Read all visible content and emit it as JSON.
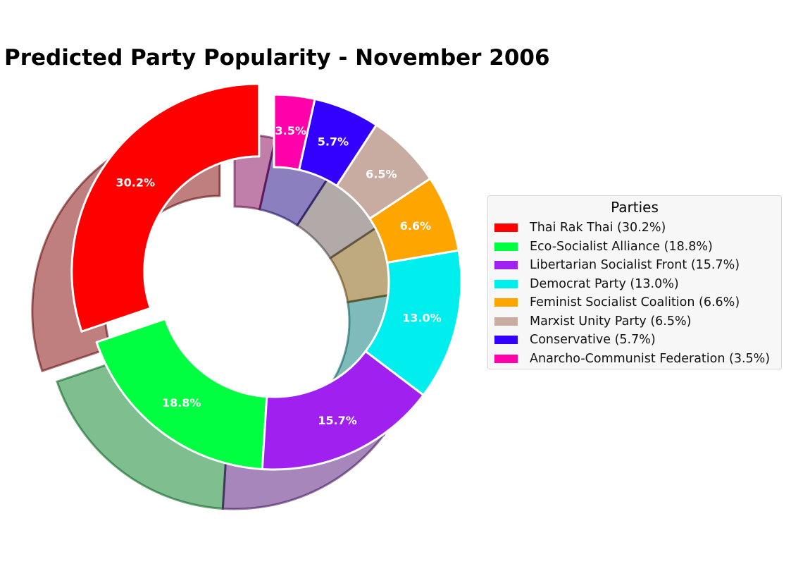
{
  "chart_data": {
    "type": "pie",
    "title": "Predicted Party Popularity - November 2006",
    "legend_title": "Parties",
    "legend_position": "right",
    "donut": true,
    "exploded": "Thai Rak Thai",
    "shadow": true,
    "start_angle": 90,
    "direction": "counterclockwise",
    "categories": [
      "Thai Rak Thai",
      "Eco-Socialist Alliance",
      "Libertarian Socialist Front",
      "Democrat Party",
      "Feminist Socialist Coalition",
      "Marxist Unity Party",
      "Conservative",
      "Anarcho-Communist Federation"
    ],
    "values": [
      30.2,
      18.8,
      15.7,
      13.0,
      6.6,
      6.5,
      5.7,
      3.5
    ],
    "labels": [
      "30.2%",
      "18.8%",
      "15.7%",
      "13.0%",
      "6.6%",
      "6.5%",
      "5.7%",
      "3.5%"
    ],
    "legend_entries": [
      "Thai Rak Thai (30.2%)",
      "Eco-Socialist Alliance (18.8%)",
      "Libertarian Socialist Front (15.7%)",
      "Democrat Party (13.0%)",
      "Feminist Socialist Coalition (6.6%)",
      "Marxist Unity Party (6.5%)",
      "Conservative (5.7%)",
      "Anarcho-Communist Federation (3.5%)"
    ],
    "colors": [
      "#ff0000",
      "#00ff40",
      "#a020f0",
      "#00eeee",
      "#ffa500",
      "#c8aca2",
      "#3300ff",
      "#ff00aa"
    ]
  }
}
